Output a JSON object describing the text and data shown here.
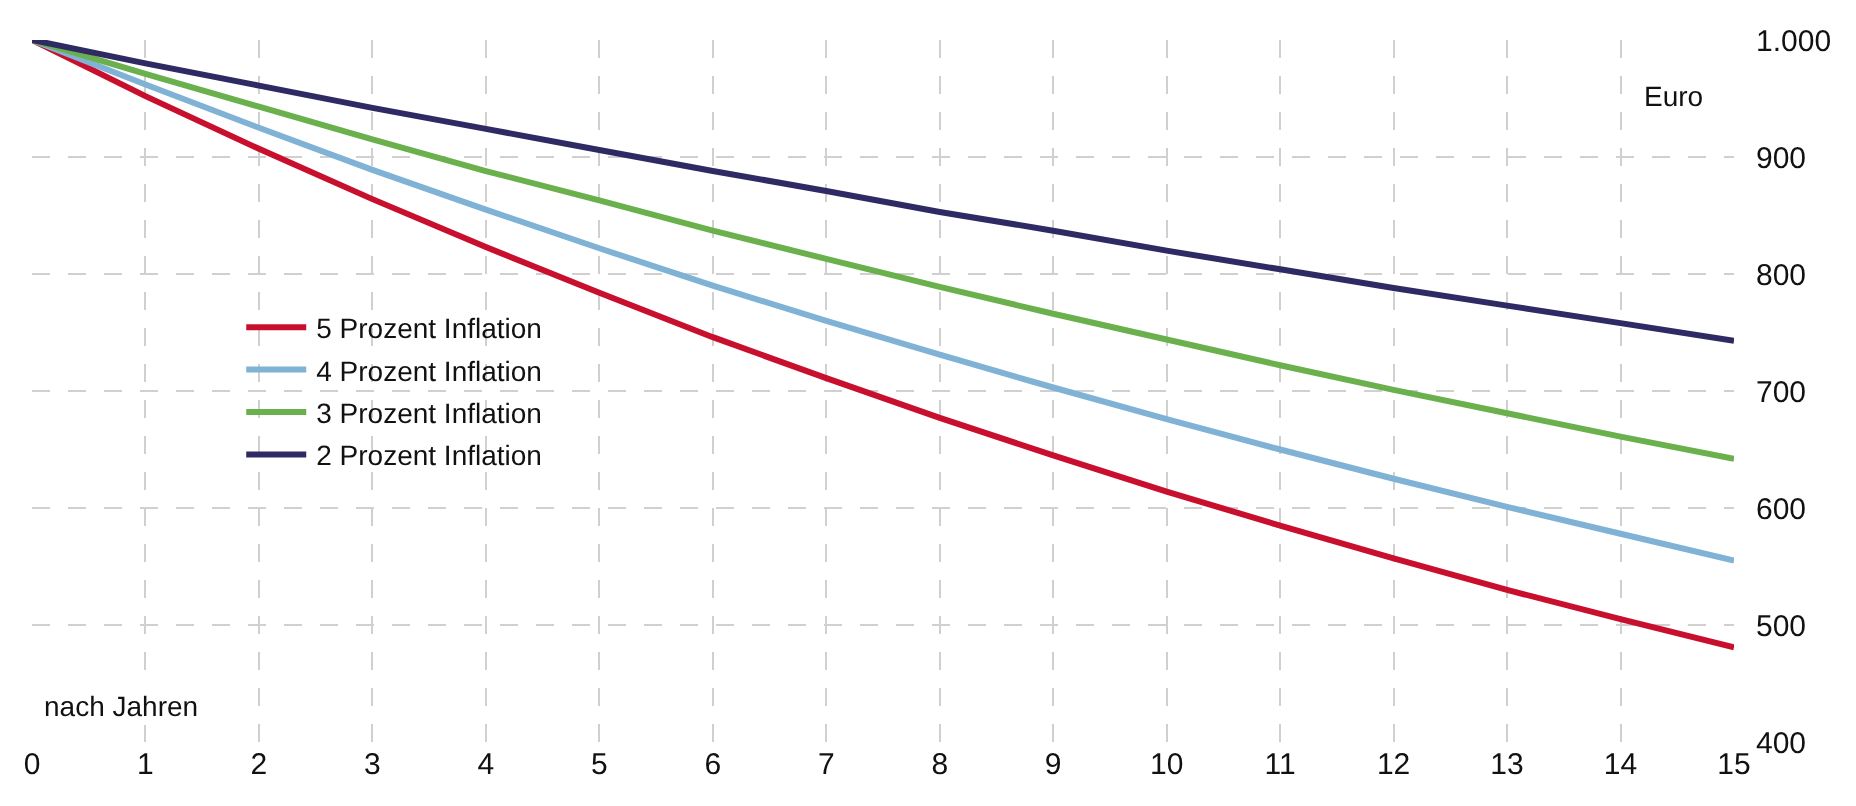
{
  "chart_data": {
    "type": "line",
    "x": [
      0,
      1,
      2,
      3,
      4,
      5,
      6,
      7,
      8,
      9,
      10,
      11,
      12,
      13,
      14,
      15
    ],
    "series": [
      {
        "name": "5 Prozent Inflation",
        "color": "#c8102e",
        "values": [
          1000,
          952,
          907,
          864,
          823,
          784,
          746,
          711,
          677,
          645,
          614,
          585,
          557,
          530,
          505,
          481
        ]
      },
      {
        "name": "4 Prozent Inflation",
        "color": "#7fb2d5",
        "values": [
          1000,
          962,
          925,
          889,
          855,
          822,
          790,
          760,
          731,
          703,
          676,
          650,
          625,
          601,
          578,
          555
        ]
      },
      {
        "name": "3 Prozent Inflation",
        "color": "#6ab04c",
        "values": [
          1000,
          971,
          943,
          915,
          888,
          863,
          837,
          813,
          789,
          766,
          744,
          722,
          701,
          681,
          661,
          642
        ]
      },
      {
        "name": "2 Prozent Inflation",
        "color": "#2e2a63",
        "values": [
          1000,
          980,
          961,
          942,
          924,
          906,
          888,
          871,
          853,
          837,
          820,
          804,
          788,
          773,
          758,
          743
        ]
      }
    ],
    "xlim": [
      0,
      15
    ],
    "xticks": [
      0,
      1,
      2,
      3,
      4,
      5,
      6,
      7,
      8,
      9,
      10,
      11,
      12,
      13,
      14,
      15
    ],
    "ylim": [
      400,
      1000
    ],
    "yticks": [
      400,
      500,
      600,
      700,
      800,
      900,
      {
        "value": 1000,
        "label": "1.000"
      }
    ],
    "annotations": [
      "Euro",
      "nach Jahren"
    ],
    "grid": true,
    "legend": "left",
    "marker": "none",
    "line_style": "solid"
  }
}
